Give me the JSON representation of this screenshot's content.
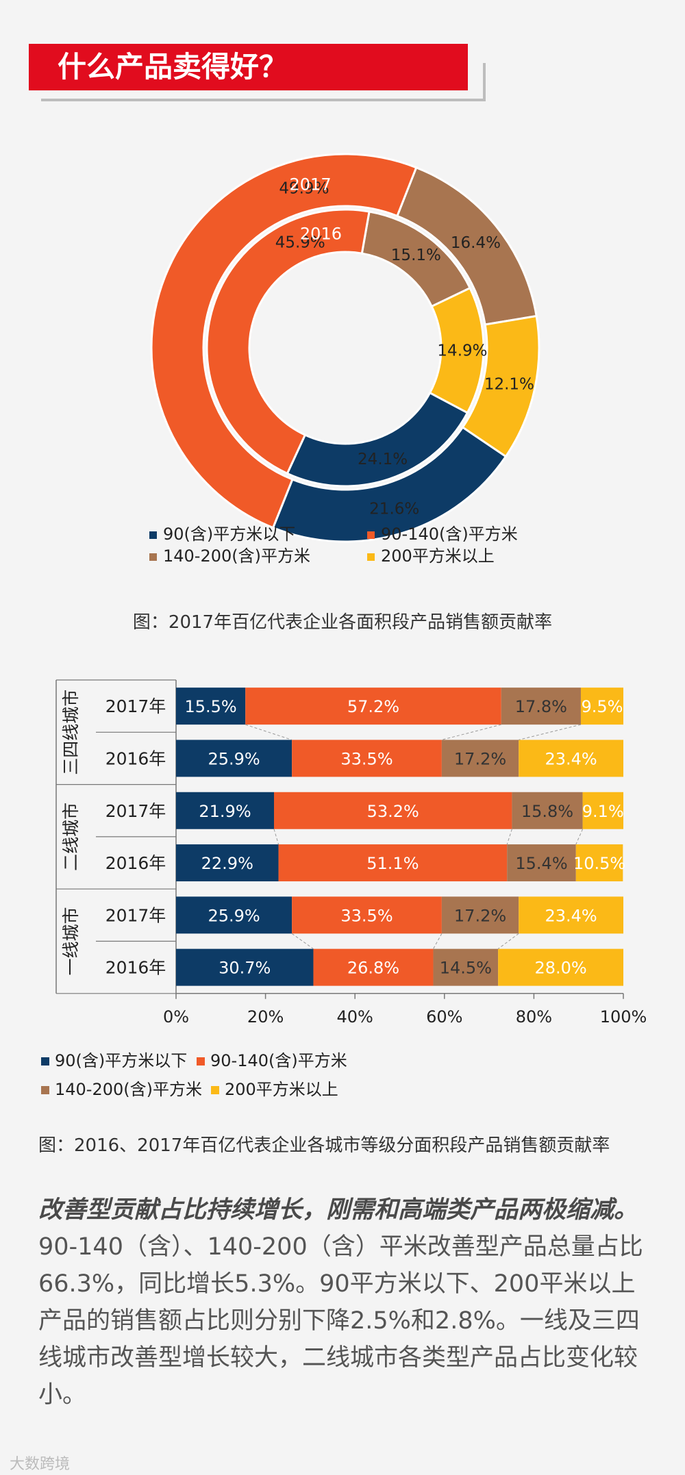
{
  "header": {
    "title": "什么产品卖得好？"
  },
  "categories": [
    "90(含)平方米以下",
    "90-140(含)平方米",
    "140-200(含)平方米",
    "200平方米以上"
  ],
  "colors": [
    "#0d3b66",
    "#f05a28",
    "#a87550",
    "#fbb917"
  ],
  "chart_data": [
    {
      "type": "pie",
      "subtype": "donut",
      "title": "图：2017年百亿代表企业各面积段产品销售额贡献率",
      "rings": [
        {
          "name": "2017",
          "label": "2017",
          "values": {
            "90(含)平方米以下": 21.6,
            "90-140(含)平方米": 49.9,
            "140-200(含)平方米": 16.4,
            "200平方米以上": 12.1
          }
        },
        {
          "name": "2016",
          "label": "2016",
          "values": {
            "90(含)平方米以下": 24.1,
            "90-140(含)平方米": 45.9,
            "140-200(含)平方米": 15.1,
            "200平方米以上": 14.9
          }
        }
      ],
      "legend": [
        "90(含)平方米以下",
        "90-140(含)平方米",
        "140-200(含)平方米",
        "200平方米以上"
      ]
    },
    {
      "type": "bar",
      "subtype": "stacked-horizontal-100",
      "title": "图：2016、2017年百亿代表企业各城市等级分面积段产品销售额贡献率",
      "groups": [
        "三四线城市",
        "二线城市",
        "一线城市"
      ],
      "rows": [
        {
          "group": "三四线城市",
          "year": "2017年",
          "values": [
            15.5,
            57.2,
            17.8,
            9.5
          ],
          "labels": [
            "15.5%",
            "57.2%",
            "17.8%",
            "9.5%"
          ]
        },
        {
          "group": "三四线城市",
          "year": "2016年",
          "values": [
            25.9,
            33.5,
            17.2,
            23.4
          ],
          "labels": [
            "25.9%",
            "33.5%",
            "17.2%",
            "23.4%"
          ]
        },
        {
          "group": "二线城市",
          "year": "2017年",
          "values": [
            21.9,
            53.2,
            15.8,
            9.1
          ],
          "labels": [
            "21.9%",
            "53.2%",
            "15.8%",
            "9.1%"
          ]
        },
        {
          "group": "二线城市",
          "year": "2016年",
          "values": [
            22.9,
            51.1,
            15.4,
            10.5
          ],
          "labels": [
            "22.9%",
            "51.1%",
            "15.4%",
            "10.5%"
          ]
        },
        {
          "group": "一线城市",
          "year": "2017年",
          "values": [
            25.9,
            33.5,
            17.2,
            23.4
          ],
          "labels": [
            "25.9%",
            "33.5%",
            "17.2%",
            "23.4%"
          ]
        },
        {
          "group": "一线城市",
          "year": "2016年",
          "values": [
            30.7,
            26.8,
            14.5,
            28.0
          ],
          "labels": [
            "30.7%",
            "26.8%",
            "14.5%",
            "28.0%"
          ]
        }
      ],
      "series_order": [
        "90(含)平方米以下",
        "90-140(含)平方米",
        "140-200(含)平方米",
        "200平方米以上"
      ],
      "xlim": [
        0,
        100
      ],
      "xticks": [
        "0%",
        "20%",
        "40%",
        "60%",
        "80%",
        "100%"
      ],
      "legend": [
        "90(含)平方米以下",
        "90-140(含)平方米",
        "140-200(含)平方米",
        "200平方米以上"
      ]
    }
  ],
  "body": {
    "lead": "改善型贡献占比持续增长，刚需和高端类产品两极缩减。",
    "text": "90-140（含）、140-200（含）平米改善型产品总量占比66.3%，同比增长5.3%。90平方米以下、200平米以上产品的销售额占比则分别下降2.5%和2.8%。一线及三四线城市改善型增长较大，二线城市各类型产品占比变化较小。"
  },
  "watermark": "大数跨境"
}
